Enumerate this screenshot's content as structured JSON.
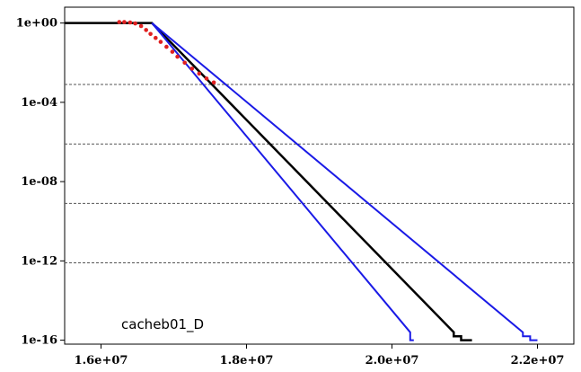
{
  "chart_data": {
    "type": "line",
    "y_scale": "log",
    "xlim": [
      15500000,
      22500000
    ],
    "ylim_log10": [
      -16.2,
      0.8
    ],
    "x_ticks": [
      {
        "value": 16000000,
        "label": "1.6e+07"
      },
      {
        "value": 18000000,
        "label": "1.8e+07"
      },
      {
        "value": 20000000,
        "label": "2.0e+07"
      },
      {
        "value": 22000000,
        "label": "2.2e+07"
      }
    ],
    "y_ticks": [
      {
        "value_log10": 0,
        "label": "1e+00"
      },
      {
        "value_log10": -4,
        "label": "1e-04"
      },
      {
        "value_log10": -8,
        "label": "1e-08"
      },
      {
        "value_log10": -12,
        "label": "1e-12"
      },
      {
        "value_log10": -16,
        "label": "1e-16"
      }
    ],
    "hlines_log10": [
      -3.1,
      -6.1,
      -9.1,
      -12.1
    ],
    "annotation": "cacheb01_D",
    "colors": {
      "fit": "#000000",
      "bounds": "#1a1ae6",
      "empirical": "#e02020",
      "hline": "#555555"
    },
    "series": [
      {
        "role": "fit",
        "points": [
          [
            15500000,
            0
          ],
          [
            16700000,
            0
          ],
          [
            20850000,
            -15.6
          ],
          [
            20850000,
            -15.8
          ],
          [
            20950000,
            -15.8
          ],
          [
            20950000,
            -16.0
          ],
          [
            21100000,
            -16.0
          ]
        ]
      },
      {
        "role": "bound-lower",
        "points": [
          [
            16700000,
            0
          ],
          [
            20250000,
            -15.6
          ],
          [
            20250000,
            -16.0
          ],
          [
            20300000,
            -16.0
          ]
        ]
      },
      {
        "role": "bound-upper",
        "points": [
          [
            16700000,
            0
          ],
          [
            21800000,
            -15.6
          ],
          [
            21800000,
            -15.8
          ],
          [
            21900000,
            -15.8
          ],
          [
            21900000,
            -16.0
          ],
          [
            22000000,
            -16.0
          ]
        ]
      },
      {
        "role": "empirical",
        "points": [
          [
            16250000,
            0.05
          ],
          [
            16320000,
            0.05
          ],
          [
            16400000,
            0.03
          ],
          [
            16470000,
            -0.02
          ],
          [
            16550000,
            -0.15
          ],
          [
            16620000,
            -0.35
          ],
          [
            16680000,
            -0.55
          ],
          [
            16750000,
            -0.75
          ],
          [
            16820000,
            -0.95
          ],
          [
            16900000,
            -1.2
          ],
          [
            16980000,
            -1.45
          ],
          [
            17050000,
            -1.7
          ],
          [
            17150000,
            -2.0
          ],
          [
            17250000,
            -2.3
          ],
          [
            17350000,
            -2.55
          ],
          [
            17450000,
            -2.8
          ],
          [
            17550000,
            -3.0
          ]
        ]
      }
    ]
  }
}
